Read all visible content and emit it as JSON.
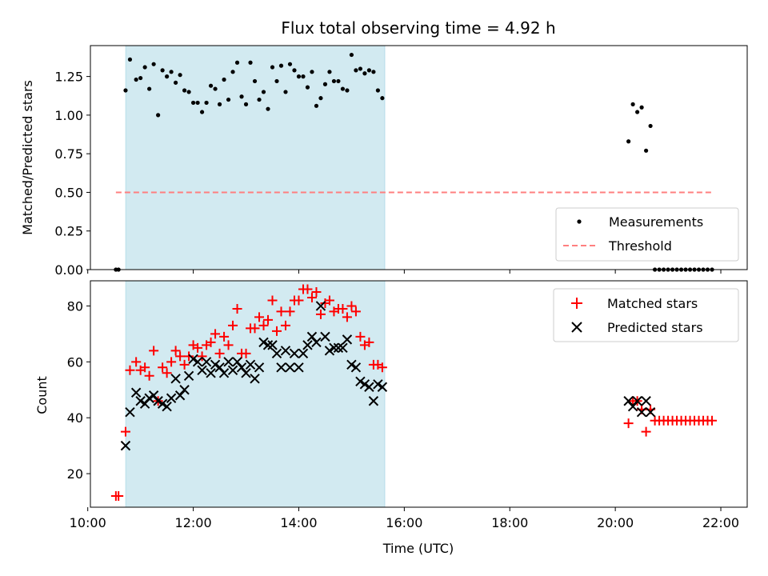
{
  "chart_data": [
    {
      "type": "scatter",
      "title": "Flux total observing time = 4.92 h",
      "ylabel": "Matched/Predicted stars",
      "xlabel": "",
      "xlim_hours": [
        10.05,
        22.5
      ],
      "ylim": [
        0,
        1.45
      ],
      "x_ticks": [
        10,
        12,
        14,
        16,
        18,
        20,
        22
      ],
      "y_ticks": [
        0.0,
        0.25,
        0.5,
        0.75,
        1.0,
        1.25
      ],
      "y_tick_labels": [
        "0.00",
        "0.25",
        "0.50",
        "0.75",
        "1.00",
        "1.25"
      ],
      "highlight_span_hours": [
        10.72,
        15.63
      ],
      "highlight_color": "#add8e6",
      "series": [
        {
          "name": "Measurements",
          "marker": "dot",
          "color": "#000000",
          "x": [
            "10:32",
            "10:35",
            "10:43",
            "10:48",
            "10:55",
            "11:00",
            "11:05",
            "11:10",
            "11:15",
            "11:20",
            "11:25",
            "11:30",
            "11:35",
            "11:40",
            "11:45",
            "11:50",
            "11:55",
            "12:00",
            "12:05",
            "12:10",
            "12:15",
            "12:20",
            "12:25",
            "12:30",
            "12:35",
            "12:40",
            "12:45",
            "12:50",
            "12:55",
            "13:00",
            "13:05",
            "13:10",
            "13:15",
            "13:20",
            "13:25",
            "13:30",
            "13:35",
            "13:40",
            "13:45",
            "13:50",
            "13:55",
            "14:00",
            "14:05",
            "14:10",
            "14:15",
            "14:20",
            "14:25",
            "14:30",
            "14:35",
            "14:40",
            "14:45",
            "14:50",
            "14:55",
            "15:00",
            "15:05",
            "15:10",
            "15:15",
            "15:20",
            "15:25",
            "15:30",
            "15:35",
            "20:15",
            "20:20",
            "20:25",
            "20:30",
            "20:35",
            "20:40",
            "20:45",
            "20:50",
            "20:55",
            "21:00",
            "21:05",
            "21:10",
            "21:15",
            "21:20",
            "21:25",
            "21:30",
            "21:35",
            "21:40",
            "21:45",
            "21:50"
          ],
          "y": [
            0.0,
            0.0,
            1.16,
            1.36,
            1.23,
            1.24,
            1.31,
            1.17,
            1.33,
            1.0,
            1.29,
            1.25,
            1.28,
            1.21,
            1.26,
            1.16,
            1.15,
            1.08,
            1.08,
            1.02,
            1.08,
            1.19,
            1.17,
            1.07,
            1.23,
            1.1,
            1.28,
            1.34,
            1.12,
            1.07,
            1.34,
            1.22,
            1.1,
            1.15,
            1.04,
            1.31,
            1.22,
            1.32,
            1.15,
            1.33,
            1.29,
            1.25,
            1.25,
            1.18,
            1.28,
            1.06,
            1.11,
            1.2,
            1.28,
            1.22,
            1.22,
            1.17,
            1.16,
            1.39,
            1.29,
            1.3,
            1.27,
            1.29,
            1.28,
            1.16,
            1.11,
            0.83,
            1.07,
            1.02,
            1.05,
            0.77,
            0.93,
            0.0,
            0.0,
            0.0,
            0.0,
            0.0,
            0.0,
            0.0,
            0.0,
            0.0,
            0.0,
            0.0,
            0.0,
            0.0,
            0.0
          ]
        },
        {
          "name": "Threshold",
          "style": "dashed",
          "color": "#ff7f7f",
          "x": [
            "10:32",
            "21:50"
          ],
          "y": [
            0.5,
            0.5
          ]
        }
      ],
      "legend": {
        "position": "lower-right",
        "entries": [
          "Measurements",
          "Threshold"
        ]
      }
    },
    {
      "type": "scatter",
      "title": "",
      "ylabel": "Count",
      "xlabel": "Time (UTC)",
      "xlim_hours": [
        10.05,
        22.5
      ],
      "ylim": [
        8,
        89
      ],
      "x_ticks": [
        10,
        12,
        14,
        16,
        18,
        20,
        22
      ],
      "x_tick_labels": [
        "10:00",
        "12:00",
        "14:00",
        "16:00",
        "18:00",
        "20:00",
        "22:00"
      ],
      "y_ticks": [
        20,
        40,
        60,
        80
      ],
      "y_tick_labels": [
        "20",
        "40",
        "60",
        "80"
      ],
      "highlight_span_hours": [
        10.72,
        15.63
      ],
      "highlight_color": "#add8e6",
      "series": [
        {
          "name": "Matched stars",
          "marker": "plus",
          "color": "#ff0000",
          "x": [
            "10:32",
            "10:35",
            "10:43",
            "10:48",
            "10:55",
            "11:00",
            "11:05",
            "11:10",
            "11:15",
            "11:20",
            "11:25",
            "11:30",
            "11:35",
            "11:40",
            "11:45",
            "11:50",
            "11:55",
            "12:00",
            "12:05",
            "12:10",
            "12:15",
            "12:20",
            "12:25",
            "12:30",
            "12:35",
            "12:40",
            "12:45",
            "12:50",
            "12:55",
            "13:00",
            "13:05",
            "13:10",
            "13:15",
            "13:20",
            "13:25",
            "13:30",
            "13:35",
            "13:40",
            "13:45",
            "13:50",
            "13:55",
            "14:00",
            "14:05",
            "14:10",
            "14:15",
            "14:20",
            "14:25",
            "14:30",
            "14:35",
            "14:40",
            "14:45",
            "14:50",
            "14:55",
            "15:00",
            "15:05",
            "15:10",
            "15:15",
            "15:20",
            "15:25",
            "15:30",
            "15:35",
            "20:15",
            "20:20",
            "20:25",
            "20:30",
            "20:35",
            "20:40",
            "20:45",
            "20:50",
            "20:55",
            "21:00",
            "21:05",
            "21:10",
            "21:15",
            "21:20",
            "21:25",
            "21:30",
            "21:35",
            "21:40",
            "21:45",
            "21:50"
          ],
          "y": [
            12,
            12,
            35,
            57,
            60,
            57,
            58,
            55,
            64,
            46,
            58,
            56,
            60,
            64,
            62,
            59,
            62,
            66,
            65,
            62,
            66,
            67,
            70,
            63,
            69,
            66,
            73,
            79,
            63,
            63,
            72,
            72,
            76,
            73,
            75,
            82,
            71,
            78,
            73,
            78,
            82,
            82,
            86,
            86,
            83,
            85,
            77,
            81,
            82,
            78,
            79,
            79,
            76,
            80,
            78,
            69,
            66,
            67,
            59,
            59,
            58,
            38,
            46,
            46,
            43,
            35,
            43,
            39,
            39,
            39,
            39,
            39,
            39,
            39,
            39,
            39,
            39,
            39,
            39,
            39,
            39
          ]
        },
        {
          "name": "Predicted stars",
          "marker": "x",
          "color": "#000000",
          "x": [
            "10:43",
            "10:48",
            "10:55",
            "11:00",
            "11:05",
            "11:10",
            "11:15",
            "11:20",
            "11:25",
            "11:30",
            "11:35",
            "11:40",
            "11:45",
            "11:50",
            "11:55",
            "12:00",
            "12:05",
            "12:10",
            "12:15",
            "12:20",
            "12:25",
            "12:30",
            "12:35",
            "12:40",
            "12:45",
            "12:50",
            "12:55",
            "13:00",
            "13:05",
            "13:10",
            "13:15",
            "13:20",
            "13:25",
            "13:30",
            "13:35",
            "13:40",
            "13:45",
            "13:50",
            "13:55",
            "14:00",
            "14:05",
            "14:10",
            "14:15",
            "14:20",
            "14:25",
            "14:30",
            "14:35",
            "14:40",
            "14:45",
            "14:50",
            "14:55",
            "15:00",
            "15:05",
            "15:10",
            "15:15",
            "15:20",
            "15:25",
            "15:30",
            "15:35",
            "20:15",
            "20:20",
            "20:25",
            "20:30",
            "20:35",
            "20:40"
          ],
          "y": [
            30,
            42,
            49,
            46,
            45,
            47,
            48,
            46,
            45,
            44,
            47,
            54,
            48,
            50,
            55,
            61,
            60,
            57,
            60,
            56,
            59,
            58,
            56,
            60,
            57,
            60,
            58,
            56,
            59,
            54,
            58,
            67,
            66,
            66,
            63,
            58,
            64,
            58,
            63,
            58,
            63,
            66,
            69,
            67,
            80,
            69,
            64,
            65,
            65,
            65,
            68,
            59,
            58,
            53,
            52,
            51,
            46,
            52,
            51,
            46,
            44,
            46,
            42,
            46,
            42
          ]
        }
      ],
      "legend": {
        "position": "top-right",
        "entries": [
          "Matched stars",
          "Predicted stars"
        ]
      }
    }
  ]
}
